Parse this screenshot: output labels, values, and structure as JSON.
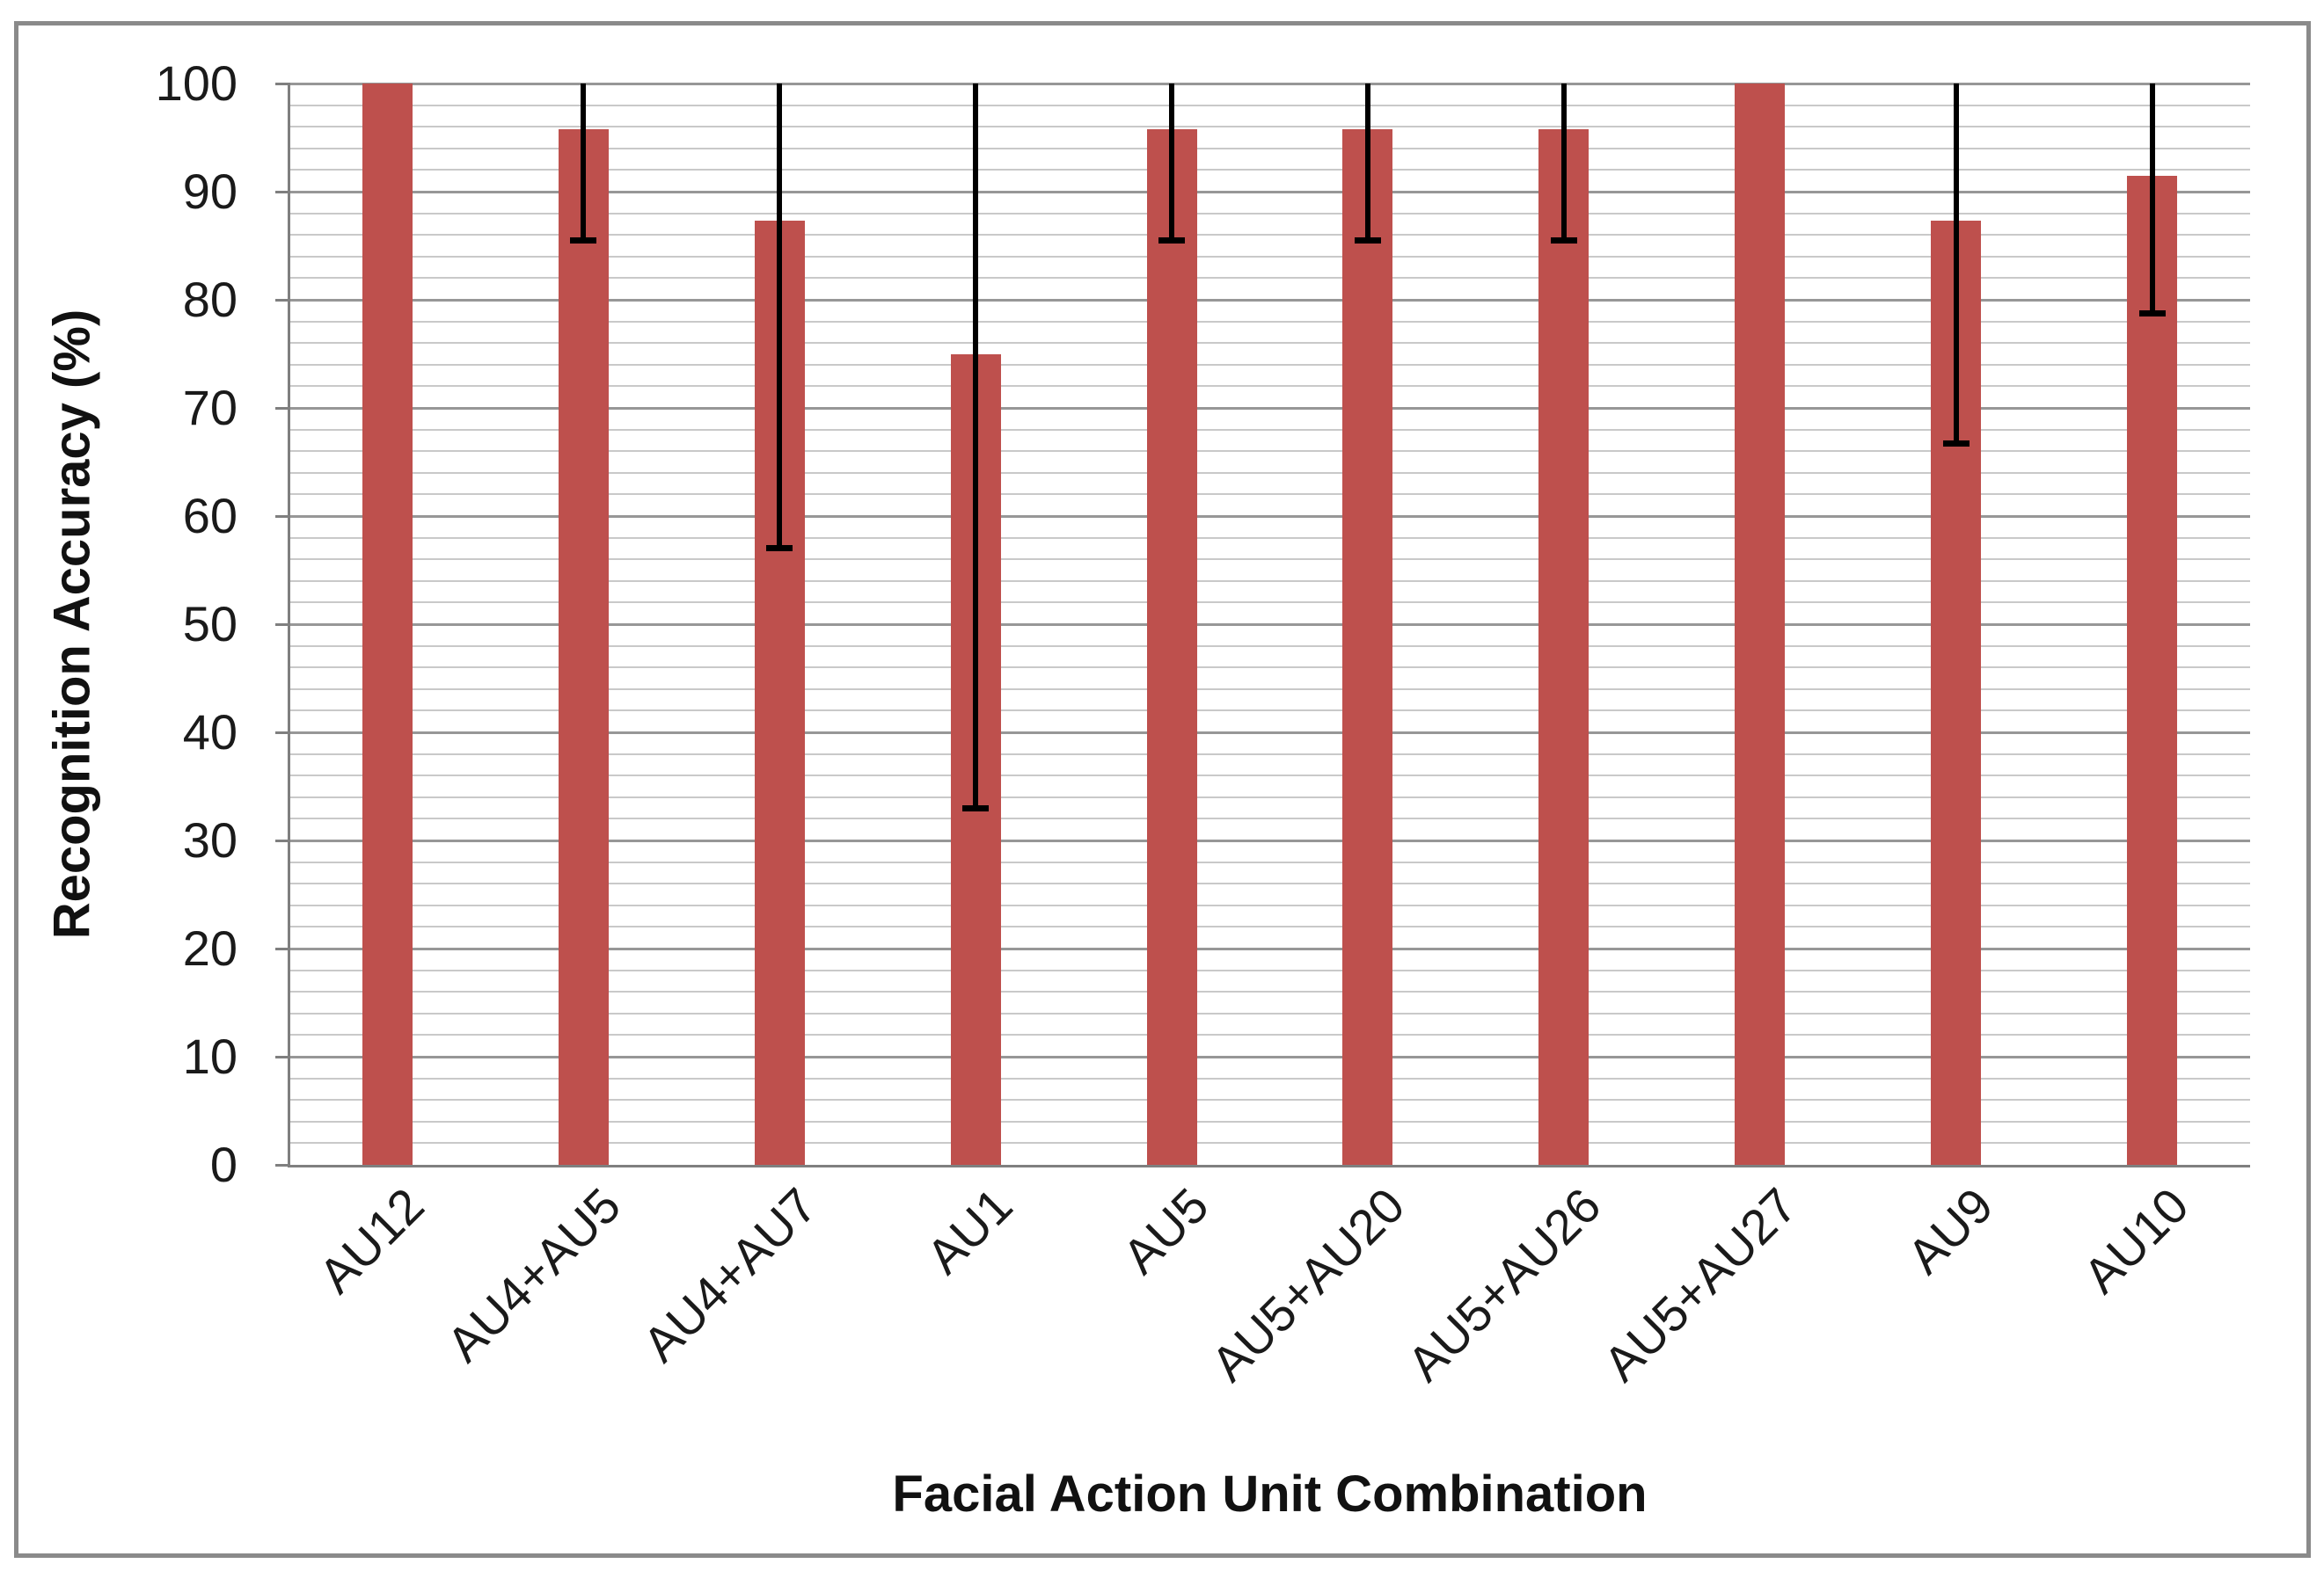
{
  "chart_data": {
    "type": "bar",
    "title": "",
    "xlabel": "Facial Action Unit Combination",
    "ylabel": "Recognition Accuracy (%)",
    "categories": [
      "AU12",
      "AU4+AU5",
      "AU4+AU7",
      "AU1",
      "AU5",
      "AU5+AU20",
      "AU5+AU26",
      "AU5+AU27",
      "AU9",
      "AU10"
    ],
    "values": [
      100,
      95.8,
      87.3,
      75,
      95.8,
      95.8,
      95.8,
      100,
      87.3,
      91.5
    ],
    "error_bars": {
      "low": [
        null,
        85.5,
        57,
        33,
        85.5,
        85.5,
        85.5,
        null,
        66.7,
        78.7
      ],
      "high": [
        null,
        100,
        100,
        100,
        100,
        100,
        100,
        null,
        100,
        100
      ]
    },
    "ylim": [
      0,
      100
    ],
    "y_major_step": 10,
    "y_minor_step": 2,
    "y_tick_labels": [
      "0",
      "10",
      "20",
      "30",
      "40",
      "50",
      "60",
      "70",
      "80",
      "90",
      "100"
    ],
    "grid": "horizontal major+minor, no legend",
    "legend": "none",
    "bar_color": "#be504d",
    "error_color": "#000000",
    "major_grid_color": "#979797",
    "minor_grid_color": "#c9c9c9",
    "axis_color": "#7f7f7f",
    "border_color": "#8a8a8a"
  }
}
